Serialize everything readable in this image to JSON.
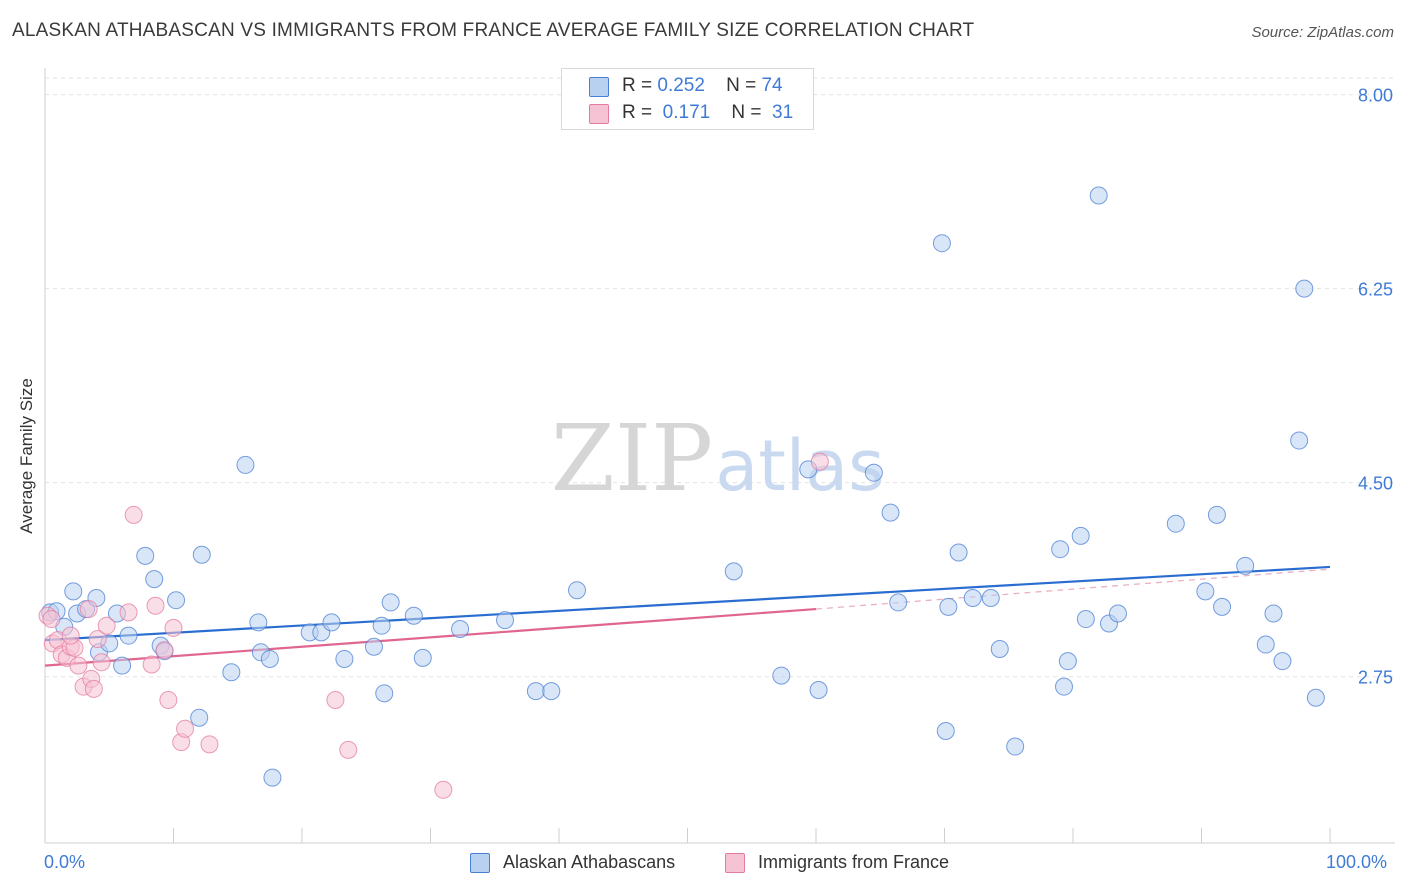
{
  "header": {
    "title": "ALASKAN ATHABASCAN VS IMMIGRANTS FROM FRANCE AVERAGE FAMILY SIZE CORRELATION CHART",
    "source": "Source: ZipAtlas.com"
  },
  "watermark": {
    "zip": "ZIP",
    "atlas": "atlas"
  },
  "colors": {
    "blue": "#4a7fd4",
    "blue_fill": "#b9d1f1",
    "blue_line": "#2a6dd1",
    "pink": "#e47ba0",
    "pink_fill": "#f6c3d4",
    "pink_line": "#e0668f",
    "axis_text": "#3f7bd6",
    "grid": "#e3e3e3"
  },
  "legend_top": {
    "rows": [
      {
        "r_label": "R =",
        "r_value": "0.252",
        "n_label": "N =",
        "n_value": "74"
      },
      {
        "r_label": "R =",
        "r_value": "0.171",
        "n_label": "N =",
        "n_value": "31"
      }
    ]
  },
  "legend_bottom": {
    "items": [
      {
        "label": "Alaskan Athabascans"
      },
      {
        "label": "Immigrants from France"
      }
    ]
  },
  "chart_data": {
    "type": "scatter",
    "title": "ALASKAN ATHABASCAN VS IMMIGRANTS FROM FRANCE AVERAGE FAMILY SIZE CORRELATION CHART",
    "xlabel": "",
    "ylabel": "Average Family Size",
    "xlim": [
      0,
      100
    ],
    "ylim": [
      1.25,
      8.15
    ],
    "x_tick_labels": [
      "0.0%",
      "100.0%"
    ],
    "y_ticks": [
      2.75,
      4.5,
      6.25,
      8.0
    ],
    "y_tick_labels": [
      "2.75",
      "4.50",
      "6.25",
      "8.00"
    ],
    "grid": true,
    "legend_position": "top-center",
    "series": [
      {
        "name": "Alaskan Athabascans",
        "color": "#4a7fd4",
        "points": [
          [
            0.4,
            3.33
          ],
          [
            0.9,
            3.34
          ],
          [
            1.5,
            3.2
          ],
          [
            2.2,
            3.52
          ],
          [
            2.5,
            3.32
          ],
          [
            3.2,
            3.36
          ],
          [
            4.0,
            3.46
          ],
          [
            4.2,
            2.97
          ],
          [
            5.0,
            3.05
          ],
          [
            5.6,
            3.32
          ],
          [
            6.0,
            2.85
          ],
          [
            6.5,
            3.12
          ],
          [
            7.8,
            3.84
          ],
          [
            8.5,
            3.63
          ],
          [
            9.0,
            3.03
          ],
          [
            9.3,
            2.98
          ],
          [
            10.2,
            3.44
          ],
          [
            12.0,
            2.38
          ],
          [
            12.2,
            3.85
          ],
          [
            14.5,
            2.79
          ],
          [
            15.6,
            4.66
          ],
          [
            16.6,
            3.24
          ],
          [
            16.8,
            2.97
          ],
          [
            17.5,
            2.91
          ],
          [
            17.7,
            1.84
          ],
          [
            20.6,
            3.15
          ],
          [
            21.5,
            3.15
          ],
          [
            22.3,
            3.24
          ],
          [
            23.3,
            2.91
          ],
          [
            25.6,
            3.02
          ],
          [
            26.2,
            3.21
          ],
          [
            26.4,
            2.6
          ],
          [
            26.9,
            3.42
          ],
          [
            28.7,
            3.3
          ],
          [
            29.4,
            2.92
          ],
          [
            32.3,
            3.18
          ],
          [
            35.8,
            3.26
          ],
          [
            38.2,
            2.62
          ],
          [
            39.4,
            2.62
          ],
          [
            41.4,
            3.53
          ],
          [
            53.6,
            3.7
          ],
          [
            57.3,
            2.76
          ],
          [
            59.4,
            4.62
          ],
          [
            60.2,
            2.63
          ],
          [
            65.8,
            4.23
          ],
          [
            66.4,
            3.42
          ],
          [
            69.8,
            6.66
          ],
          [
            70.1,
            2.26
          ],
          [
            70.3,
            3.38
          ],
          [
            71.1,
            3.87
          ],
          [
            72.2,
            3.46
          ],
          [
            73.6,
            3.46
          ],
          [
            74.3,
            3.0
          ],
          [
            75.5,
            2.12
          ],
          [
            79.0,
            3.9
          ],
          [
            79.3,
            2.66
          ],
          [
            79.6,
            2.89
          ],
          [
            80.6,
            4.02
          ],
          [
            81.0,
            3.27
          ],
          [
            82.0,
            7.09
          ],
          [
            82.8,
            3.23
          ],
          [
            83.5,
            3.32
          ],
          [
            88.0,
            4.13
          ],
          [
            90.3,
            3.52
          ],
          [
            91.2,
            4.21
          ],
          [
            91.6,
            3.38
          ],
          [
            93.4,
            3.75
          ],
          [
            95.0,
            3.04
          ],
          [
            95.6,
            3.32
          ],
          [
            96.3,
            2.89
          ],
          [
            98.0,
            6.25
          ],
          [
            98.9,
            2.56
          ],
          [
            97.6,
            4.88
          ],
          [
            64.5,
            4.59
          ]
        ]
      },
      {
        "name": "Immigrants from France",
        "color": "#e47ba0",
        "points": [
          [
            0.2,
            3.3
          ],
          [
            0.5,
            3.27
          ],
          [
            0.6,
            3.05
          ],
          [
            1.0,
            3.08
          ],
          [
            1.3,
            2.95
          ],
          [
            1.7,
            2.92
          ],
          [
            2.0,
            3.02
          ],
          [
            2.3,
            3.01
          ],
          [
            2.6,
            2.85
          ],
          [
            3.0,
            2.66
          ],
          [
            3.4,
            3.36
          ],
          [
            3.6,
            2.73
          ],
          [
            3.8,
            2.64
          ],
          [
            4.1,
            3.09
          ],
          [
            4.4,
            2.88
          ],
          [
            4.8,
            3.21
          ],
          [
            6.9,
            4.21
          ],
          [
            6.5,
            3.33
          ],
          [
            8.3,
            2.86
          ],
          [
            8.6,
            3.39
          ],
          [
            9.6,
            2.54
          ],
          [
            10.0,
            3.19
          ],
          [
            10.6,
            2.16
          ],
          [
            10.9,
            2.28
          ],
          [
            12.8,
            2.14
          ],
          [
            22.6,
            2.54
          ],
          [
            23.6,
            2.09
          ],
          [
            31.0,
            1.73
          ],
          [
            60.3,
            4.69
          ],
          [
            9.3,
            2.99
          ],
          [
            2.0,
            3.12
          ]
        ]
      }
    ],
    "trendlines": [
      {
        "series": "Alaskan Athabascans",
        "x": [
          0,
          100
        ],
        "y": [
          3.08,
          3.74
        ]
      },
      {
        "series": "Immigrants from France",
        "x": [
          0,
          60
        ],
        "y": [
          2.85,
          3.36
        ],
        "dashed_extension": {
          "x": [
            60,
            100
          ],
          "y": [
            3.36,
            3.72
          ]
        }
      }
    ]
  }
}
